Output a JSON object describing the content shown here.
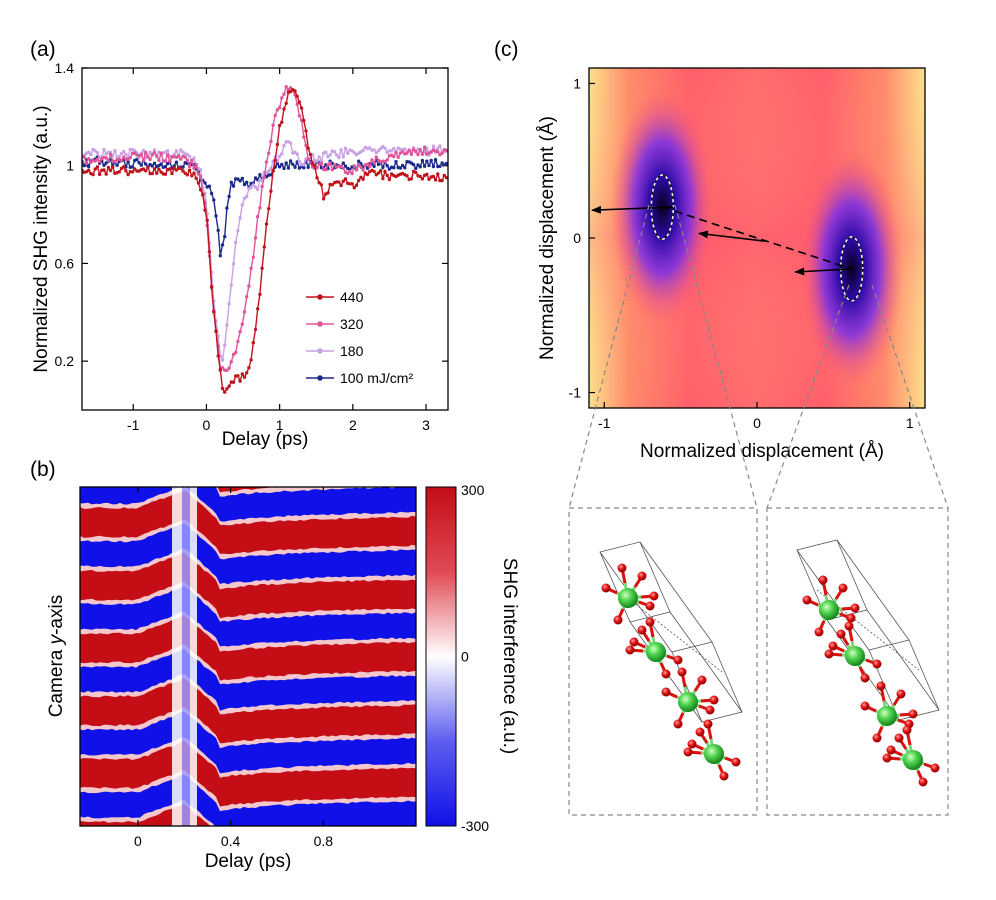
{
  "panels": {
    "a": {
      "label": "(a)",
      "xlabel": "Delay (ps)",
      "ylabel": "Normalized SHG intensity (a.u.)",
      "xticks": [
        "-1",
        "0",
        "1",
        "2",
        "3"
      ],
      "yticks": [
        "0.2",
        "0.6",
        "1",
        "1.4"
      ]
    },
    "b": {
      "label": "(b)",
      "xlabel": "Delay (ps)",
      "ylabel_pre": "Camera ",
      "ylabel_it": "y",
      "ylabel_post": "-axis",
      "xticks": [
        "0",
        "0.4",
        "0.8"
      ],
      "colorbar_label": "SHG interference (a.u.)",
      "colorbar_ticks": [
        "300",
        "0",
        "-300"
      ]
    },
    "c": {
      "label": "(c)",
      "xlabel": "Normalized displacement (Å)",
      "ylabel": "Normalized displacement (Å)",
      "xticks": [
        "-1",
        "0",
        "1"
      ],
      "yticks": [
        "1",
        "0",
        "-1"
      ]
    }
  },
  "chart_data": [
    {
      "type": "line",
      "panel": "a",
      "title": "",
      "xlabel": "Delay (ps)",
      "ylabel": "Normalized SHG intensity (a.u.)",
      "xlim": [
        -1.7,
        3.3
      ],
      "ylim": [
        0.0,
        1.4
      ],
      "legend_position": "bottom-right",
      "series": [
        {
          "name": "440",
          "legend": "440",
          "color": "#c0141c",
          "x": [
            -1.7,
            -1.0,
            -0.3,
            -0.1,
            0.0,
            0.1,
            0.2,
            0.25,
            0.3,
            0.4,
            0.5,
            0.6,
            0.7,
            0.8,
            0.9,
            1.0,
            1.1,
            1.2,
            1.3,
            1.4,
            1.5,
            1.6,
            1.8,
            2.0,
            2.2,
            2.5,
            3.0,
            3.3
          ],
          "y": [
            0.98,
            0.98,
            0.98,
            0.94,
            0.8,
            0.4,
            0.12,
            0.07,
            0.1,
            0.14,
            0.13,
            0.2,
            0.4,
            0.7,
            0.95,
            1.15,
            1.28,
            1.33,
            1.25,
            1.05,
            0.97,
            0.88,
            0.94,
            0.92,
            0.97,
            0.96,
            0.96,
            0.95
          ]
        },
        {
          "name": "320",
          "legend": "320",
          "color": "#e0559a",
          "x": [
            -1.7,
            -1.0,
            -0.3,
            -0.1,
            0.0,
            0.1,
            0.2,
            0.3,
            0.4,
            0.5,
            0.6,
            0.7,
            0.8,
            0.9,
            1.0,
            1.1,
            1.2,
            1.3,
            1.4,
            1.5,
            1.7,
            2.0,
            2.3,
            2.6,
            3.0,
            3.3
          ],
          "y": [
            1.02,
            1.04,
            1.03,
            0.98,
            0.8,
            0.4,
            0.15,
            0.18,
            0.25,
            0.35,
            0.55,
            0.78,
            0.98,
            1.15,
            1.25,
            1.32,
            1.3,
            1.18,
            1.02,
            0.99,
            1.0,
            0.98,
            1.02,
            1.04,
            1.06,
            1.06
          ]
        },
        {
          "name": "180",
          "legend": "180",
          "color": "#c9a2e4",
          "x": [
            -1.7,
            -1.0,
            -0.3,
            -0.1,
            0.0,
            0.1,
            0.2,
            0.25,
            0.3,
            0.4,
            0.5,
            0.6,
            0.7,
            0.8,
            0.9,
            1.0,
            1.1,
            1.2,
            1.3,
            1.5,
            1.8,
            2.0,
            2.3,
            2.6,
            3.0,
            3.3
          ],
          "y": [
            1.05,
            1.05,
            1.05,
            1.0,
            0.85,
            0.45,
            0.2,
            0.25,
            0.4,
            0.7,
            0.86,
            0.9,
            0.92,
            0.96,
            1.0,
            1.05,
            1.1,
            1.06,
            1.02,
            1.03,
            1.05,
            1.06,
            1.06,
            1.07,
            1.06,
            1.07
          ]
        },
        {
          "name": "100 mJ/cm²",
          "legend": "100 mJ/cm²",
          "color": "#1c2a8c",
          "x": [
            -1.7,
            -1.5,
            -1.0,
            -0.5,
            -0.2,
            -0.1,
            0.0,
            0.05,
            0.1,
            0.15,
            0.2,
            0.25,
            0.3,
            0.35,
            0.4,
            0.5,
            0.6,
            0.7,
            0.8,
            0.9,
            1.0,
            1.1,
            1.2,
            1.4,
            1.6,
            1.8,
            2.0,
            2.3,
            2.6,
            3.0,
            3.3
          ],
          "y": [
            1.0,
            1.02,
            1.01,
            1.0,
            1.0,
            0.96,
            0.92,
            0.9,
            0.85,
            0.75,
            0.62,
            0.72,
            0.88,
            0.93,
            0.94,
            0.93,
            0.92,
            0.94,
            0.96,
            0.98,
            1.0,
            1.01,
            1.0,
            1.01,
            1.0,
            1.01,
            1.0,
            1.01,
            1.0,
            1.01,
            1.01
          ]
        }
      ]
    },
    {
      "type": "heatmap",
      "panel": "b",
      "xlabel": "Delay (ps)",
      "ylabel": "Camera y-axis",
      "xlim": [
        -0.25,
        1.2
      ],
      "colorbar": {
        "min": -300,
        "max": 300,
        "label": "SHG interference (a.u.)",
        "colors": [
          "#1010e8",
          "#ffffff",
          "#c40d15"
        ]
      },
      "fringes": {
        "count": 11,
        "start_phase": "blue",
        "time_zero_ps": 0.2,
        "shift_before_zero": "upward"
      }
    },
    {
      "type": "heatmap",
      "panel": "c",
      "subtype": "double-well potential",
      "xlabel": "Normalized displacement (Å)",
      "ylabel": "Normalized displacement (Å)",
      "xlim": [
        -1.1,
        1.1
      ],
      "ylim": [
        -1.1,
        1.1
      ],
      "minima": [
        {
          "x": -0.62,
          "y": 0.2
        },
        {
          "x": 0.62,
          "y": -0.2
        }
      ],
      "arrows": [
        {
          "from": [
            -0.55,
            0.2
          ],
          "to": [
            -1.08,
            0.18
          ]
        },
        {
          "from": [
            0.05,
            -0.02
          ],
          "to": [
            -0.38,
            0.03
          ]
        },
        {
          "from": [
            0.62,
            -0.2
          ],
          "to": [
            0.25,
            -0.22
          ]
        }
      ],
      "dashed_path": {
        "from": [
          -0.62,
          0.2
        ],
        "to": [
          0.62,
          -0.2
        ]
      }
    }
  ]
}
